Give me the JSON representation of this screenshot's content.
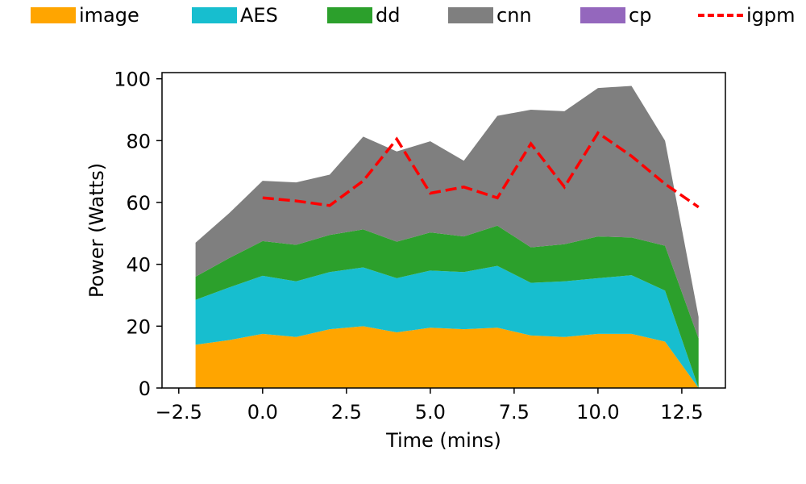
{
  "legend": {
    "items": [
      {
        "label": "image",
        "color": "#ffa500",
        "style": "patch"
      },
      {
        "label": "AES",
        "color": "#17becf",
        "style": "patch"
      },
      {
        "label": "dd",
        "color": "#2ca02c",
        "style": "patch"
      },
      {
        "label": "cnn",
        "color": "#7f7f7f",
        "style": "patch"
      },
      {
        "label": "cp",
        "color": "#9467bd",
        "style": "patch"
      },
      {
        "label": "igpm",
        "color": "#ff0000",
        "style": "dashed-line"
      }
    ],
    "placement": "top"
  },
  "chart_data": {
    "type": "area",
    "stacked": true,
    "title": "",
    "xlabel": "Time (mins)",
    "ylabel": "Power (Watts)",
    "xlim": [
      -3.0,
      13.8
    ],
    "ylim": [
      0,
      102
    ],
    "xticks": [
      -2.5,
      0.0,
      2.5,
      5.0,
      7.5,
      10.0,
      12.5
    ],
    "xtick_labels": [
      "−2.5",
      "0.0",
      "2.5",
      "5.0",
      "7.5",
      "10.0",
      "12.5"
    ],
    "yticks": [
      0,
      20,
      40,
      60,
      80,
      100
    ],
    "ytick_labels": [
      "0",
      "20",
      "40",
      "60",
      "80",
      "100"
    ],
    "grid": false,
    "x": [
      -2,
      -1,
      0,
      1,
      2,
      3,
      4,
      5,
      6,
      7,
      8,
      9,
      10,
      11,
      12,
      13
    ],
    "series": [
      {
        "name": "image",
        "color": "#ffa500",
        "values": [
          14,
          15.5,
          17.5,
          16.5,
          19,
          20,
          18,
          19.5,
          19,
          19.5,
          17,
          16.5,
          17.5,
          17.5,
          15,
          0
        ]
      },
      {
        "name": "AES",
        "color": "#17becf",
        "values": [
          14.5,
          17,
          18.8,
          18,
          18.5,
          19,
          17.5,
          18.5,
          18.5,
          20,
          17,
          18,
          18,
          19,
          16.5,
          0
        ]
      },
      {
        "name": "dd",
        "color": "#2ca02c",
        "values": [
          7.5,
          9.5,
          11.2,
          11.8,
          12,
          12.3,
          11.8,
          12.3,
          11.5,
          13,
          11.5,
          12,
          13.5,
          12.2,
          14.5,
          16
        ]
      },
      {
        "name": "cnn",
        "color": "#7f7f7f",
        "values": [
          11,
          14.5,
          19.5,
          20.2,
          19.5,
          30,
          29.2,
          29.5,
          24.5,
          35.5,
          44.5,
          43,
          48,
          49,
          34,
          7
        ]
      },
      {
        "name": "cp",
        "color": "#9467bd",
        "values": [
          0,
          0,
          0,
          0,
          0,
          0,
          0,
          0,
          0,
          0,
          0,
          0,
          0,
          0,
          0,
          0
        ]
      }
    ],
    "lines": [
      {
        "name": "igpm",
        "color": "#ff0000",
        "style": "dashed",
        "x": [
          0,
          1,
          2,
          3,
          4,
          5,
          6,
          7,
          8,
          9,
          10,
          11,
          12,
          13
        ],
        "values": [
          61.5,
          60.5,
          59,
          67,
          80.5,
          63,
          65,
          61.5,
          79,
          65,
          82.5,
          75,
          66,
          58.5
        ]
      }
    ]
  }
}
